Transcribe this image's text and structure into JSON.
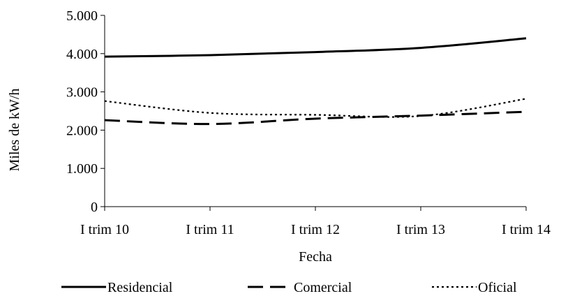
{
  "chart_data": {
    "type": "line",
    "title": "",
    "xlabel": "Fecha",
    "ylabel": "Miles de kW/h",
    "categories": [
      "I trim 10",
      "I trim 11",
      "I trim 12",
      "I trim 13",
      "I trim 14"
    ],
    "y_ticks": [
      "0",
      "1.000",
      "2.000",
      "3.000",
      "4.000",
      "5.000"
    ],
    "ylim": [
      0,
      5000
    ],
    "grid": false,
    "legend_position": "bottom",
    "series": [
      {
        "name": "Residencial",
        "style": "solid",
        "color": "#000000",
        "values": [
          3920,
          3960,
          4040,
          4150,
          4400
        ]
      },
      {
        "name": "Comercial",
        "style": "dashed",
        "color": "#000000",
        "values": [
          2260,
          2160,
          2300,
          2380,
          2480
        ]
      },
      {
        "name": "Oficial",
        "style": "dotted",
        "color": "#000000",
        "values": [
          2760,
          2450,
          2400,
          2370,
          2820
        ]
      }
    ]
  }
}
